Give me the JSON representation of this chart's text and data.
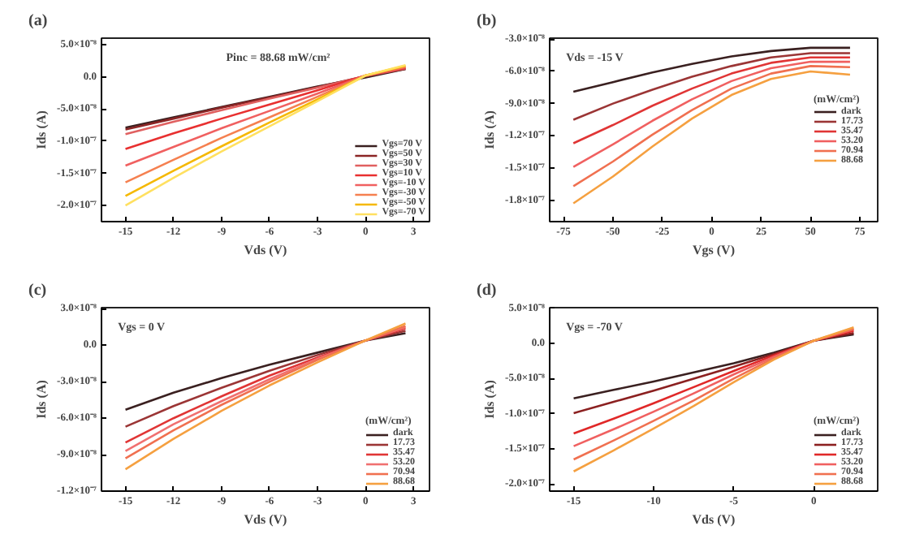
{
  "chart_data": [
    {
      "type": "line",
      "title": "(a)",
      "xlabel": "Vds (V)",
      "ylabel": "Ids (A)",
      "annotations": [
        "Pinc = 88.68 mW/cm²"
      ],
      "legend": "bottom right",
      "x": [
        -15,
        -12,
        -9,
        -6,
        -3,
        0,
        2.5
      ],
      "xlim": [
        -16.5,
        4
      ],
      "xticks": [
        -15,
        -12,
        -9,
        -6,
        -3,
        0,
        3
      ],
      "ylim": [
        -2.25e-07,
        6e-08
      ],
      "yticks": [
        {
          "value": 5e-08,
          "label": "5.0×10⁻⁸"
        },
        {
          "value": 0,
          "label": "0.0"
        },
        {
          "value": -5e-08,
          "label": "-5.0×10⁻⁸"
        },
        {
          "value": -1e-07,
          "label": "-1.0×10⁻⁷"
        },
        {
          "value": -1.5e-07,
          "label": "-1.5×10⁻⁷"
        },
        {
          "value": -2e-07,
          "label": "-2.0×10⁻⁷"
        }
      ],
      "series": [
        {
          "name": "Vgs=70 V",
          "color": "#3a2020",
          "values": [
            -7.9e-08,
            -6.3e-08,
            -4.7e-08,
            -3.1e-08,
            -1.5e-08,
            -1e-09,
            1.2e-08
          ]
        },
        {
          "name": "Vgs=50 V",
          "color": "#8b2525",
          "values": [
            -8.2e-08,
            -6.5e-08,
            -4.8e-08,
            -3.2e-08,
            -1.6e-08,
            1e-09,
            1.2e-08
          ]
        },
        {
          "name": "Vgs=30 V",
          "color": "#e06060",
          "values": [
            -8.9e-08,
            -7e-08,
            -5.2e-08,
            -3.4e-08,
            -1.7e-08,
            1e-09,
            1.3e-08
          ]
        },
        {
          "name": "Vgs=10 V",
          "color": "#e83030",
          "values": [
            -1.12e-07,
            -8.8e-08,
            -6.5e-08,
            -4.3e-08,
            -2.1e-08,
            2e-09,
            1.4e-08
          ]
        },
        {
          "name": "Vgs=-10 V",
          "color": "#f06060",
          "values": [
            -1.38e-07,
            -1.09e-07,
            -8e-08,
            -5.3e-08,
            -2.6e-08,
            2e-09,
            1.5e-08
          ]
        },
        {
          "name": "Vgs=-30 V",
          "color": "#f58050",
          "values": [
            -1.64e-07,
            -1.29e-07,
            -9.5e-08,
            -6.3e-08,
            -3.1e-08,
            2e-09,
            1.6e-08
          ]
        },
        {
          "name": "Vgs=-50 V",
          "color": "#f5b800",
          "values": [
            -1.85e-07,
            -1.46e-07,
            -1.08e-07,
            -7.1e-08,
            -3.5e-08,
            2e-09,
            1.7e-08
          ]
        },
        {
          "name": "Vgs=-70 V",
          "color": "#ffe060",
          "values": [
            -2e-07,
            -1.57e-07,
            -1.16e-07,
            -7.7e-08,
            -3.8e-08,
            2e-09,
            1.8e-08
          ]
        }
      ]
    },
    {
      "type": "line",
      "title": "(b)",
      "xlabel": "Vgs (V)",
      "ylabel": "Ids (A)",
      "annotations": [
        "Vds = -15 V"
      ],
      "legend": "right",
      "legend_title": "(mW/cm²)",
      "x": [
        -70,
        -50,
        -30,
        -10,
        10,
        30,
        50,
        70
      ],
      "xlim": [
        -82,
        84
      ],
      "xticks": [
        -75,
        -50,
        -25,
        0,
        25,
        50,
        75
      ],
      "ylim": [
        -2e-07,
        -2.9e-08
      ],
      "yticks": [
        {
          "value": -3e-08,
          "label": "-3.0×10⁻⁸"
        },
        {
          "value": -6e-08,
          "label": "-6.0×10⁻⁸"
        },
        {
          "value": -9e-08,
          "label": "-9.0×10⁻⁸"
        },
        {
          "value": -1.2e-07,
          "label": "-1.2×10⁻⁷"
        },
        {
          "value": -1.5e-07,
          "label": "-1.5×10⁻⁷"
        },
        {
          "value": -1.8e-07,
          "label": "-1.8×10⁻⁷"
        }
      ],
      "series": [
        {
          "name": "dark",
          "color": "#3a2020",
          "values": [
            -7.9e-08,
            -7e-08,
            -6.1e-08,
            -5.3e-08,
            -4.6e-08,
            -4.1e-08,
            -3.8e-08,
            -3.8e-08
          ]
        },
        {
          "name": "17.73",
          "color": "#9b3535",
          "values": [
            -1.05e-07,
            -9e-08,
            -7.7e-08,
            -6.5e-08,
            -5.5e-08,
            -4.7e-08,
            -4.3e-08,
            -4.3e-08
          ]
        },
        {
          "name": "35.47",
          "color": "#e03535",
          "values": [
            -1.27e-07,
            -1.1e-07,
            -9.2e-08,
            -7.6e-08,
            -6.2e-08,
            -5.2e-08,
            -4.7e-08,
            -4.7e-08
          ]
        },
        {
          "name": "53.20",
          "color": "#f06060",
          "values": [
            -1.49e-07,
            -1.28e-07,
            -1.06e-07,
            -8.6e-08,
            -6.9e-08,
            -5.7e-08,
            -5.1e-08,
            -5.1e-08
          ]
        },
        {
          "name": "70.94",
          "color": "#f07050",
          "values": [
            -1.67e-07,
            -1.44e-07,
            -1.19e-07,
            -9.6e-08,
            -7.6e-08,
            -6.2e-08,
            -5.5e-08,
            -5.6e-08
          ]
        },
        {
          "name": "88.68",
          "color": "#f5a040",
          "values": [
            -1.83e-07,
            -1.58e-07,
            -1.3e-07,
            -1.04e-07,
            -8.2e-08,
            -6.7e-08,
            -6e-08,
            -6.3e-08
          ]
        }
      ]
    },
    {
      "type": "line",
      "title": "(c)",
      "xlabel": "Vds (V)",
      "ylabel": "Ids (A)",
      "annotations": [
        "Vgs = 0 V"
      ],
      "legend": "bottom right",
      "legend_title": "(mW/cm²)",
      "x": [
        -15,
        -12,
        -9,
        -6,
        -3,
        0,
        2.5
      ],
      "xlim": [
        -16.5,
        4
      ],
      "xticks": [
        -15,
        -12,
        -9,
        -6,
        -3,
        0,
        3
      ],
      "ylim": [
        -1.2e-07,
        3.1e-08
      ],
      "yticks": [
        {
          "value": 3e-08,
          "label": "3.0×10⁻⁸"
        },
        {
          "value": 0,
          "label": "0.0"
        },
        {
          "value": -3e-08,
          "label": "-3.0×10⁻⁸"
        },
        {
          "value": -6e-08,
          "label": "-6.0×10⁻⁸"
        },
        {
          "value": -9e-08,
          "label": "-9.0×10⁻⁸"
        },
        {
          "value": -1.2e-07,
          "label": "-1.2×10⁻⁷"
        }
      ],
      "series": [
        {
          "name": "dark",
          "color": "#3a2020",
          "values": [
            -5.3e-08,
            -3.9e-08,
            -2.7e-08,
            -1.6e-08,
            -6e-09,
            4e-09,
            1e-08
          ]
        },
        {
          "name": "17.73",
          "color": "#9b3535",
          "values": [
            -6.7e-08,
            -5e-08,
            -3.5e-08,
            -2.1e-08,
            -8e-09,
            4e-09,
            1.2e-08
          ]
        },
        {
          "name": "35.47",
          "color": "#e03535",
          "values": [
            -8e-08,
            -6e-08,
            -4.2e-08,
            -2.5e-08,
            -1e-08,
            4e-09,
            1.4e-08
          ]
        },
        {
          "name": "53.20",
          "color": "#f07070",
          "values": [
            -8.7e-08,
            -6.5e-08,
            -4.6e-08,
            -2.8e-08,
            -1.1e-08,
            4e-09,
            1.5e-08
          ]
        },
        {
          "name": "70.94",
          "color": "#f07050",
          "values": [
            -9.3e-08,
            -7e-08,
            -4.9e-08,
            -3e-08,
            -1.2e-08,
            4e-09,
            1.6e-08
          ]
        },
        {
          "name": "88.68",
          "color": "#f5a040",
          "values": [
            -1.02e-07,
            -7.7e-08,
            -5.4e-08,
            -3.3e-08,
            -1.4e-08,
            4e-09,
            1.8e-08
          ]
        }
      ]
    },
    {
      "type": "line",
      "title": "(d)",
      "xlabel": "Vds (V)",
      "ylabel": "Ids (A)",
      "annotations": [
        "Vgs = -70 V"
      ],
      "legend": "bottom right",
      "legend_title": "(mW/cm²)",
      "x": [
        -15,
        -12.5,
        -10,
        -7.5,
        -5,
        -2.5,
        0,
        2.5
      ],
      "xlim": [
        -16.5,
        4
      ],
      "xticks": [
        -15,
        -10,
        -5,
        0
      ],
      "ylim": [
        -2.1e-07,
        5.1e-08
      ],
      "yticks": [
        {
          "value": 5e-08,
          "label": "5.0×10⁻⁸"
        },
        {
          "value": 0,
          "label": "0.0"
        },
        {
          "value": -5e-08,
          "label": "-5.0×10⁻⁸"
        },
        {
          "value": -1e-07,
          "label": "-1.0×10⁻⁷"
        },
        {
          "value": -1.5e-07,
          "label": "-1.5×10⁻⁷"
        },
        {
          "value": -2e-07,
          "label": "-2.0×10⁻⁷"
        }
      ],
      "series": [
        {
          "name": "dark",
          "color": "#3a2020",
          "values": [
            -7.8e-08,
            -6.6e-08,
            -5.4e-08,
            -4.1e-08,
            -2.8e-08,
            -1.3e-08,
            4e-09,
            1.3e-08
          ]
        },
        {
          "name": "17.73",
          "color": "#8b2020",
          "values": [
            -9.9e-08,
            -8.3e-08,
            -6.7e-08,
            -5e-08,
            -3.3e-08,
            -1.5e-08,
            4e-09,
            1.5e-08
          ]
        },
        {
          "name": "35.47",
          "color": "#e02828",
          "values": [
            -1.28e-07,
            -1.07e-07,
            -8.5e-08,
            -6.2e-08,
            -3.9e-08,
            -1.7e-08,
            4e-09,
            1.8e-08
          ]
        },
        {
          "name": "53.20",
          "color": "#f06060",
          "values": [
            -1.46e-07,
            -1.22e-07,
            -9.7e-08,
            -7.1e-08,
            -4.4e-08,
            -1.9e-08,
            4e-09,
            2e-08
          ]
        },
        {
          "name": "70.94",
          "color": "#f07050",
          "values": [
            -1.65e-07,
            -1.38e-07,
            -1.1e-07,
            -8.1e-08,
            -5e-08,
            -2.1e-08,
            4e-09,
            2.1e-08
          ]
        },
        {
          "name": "88.68",
          "color": "#f5a040",
          "values": [
            -1.82e-07,
            -1.52e-07,
            -1.21e-07,
            -8.9e-08,
            -5.5e-08,
            -2.3e-08,
            4e-09,
            2.3e-08
          ]
        }
      ]
    }
  ]
}
